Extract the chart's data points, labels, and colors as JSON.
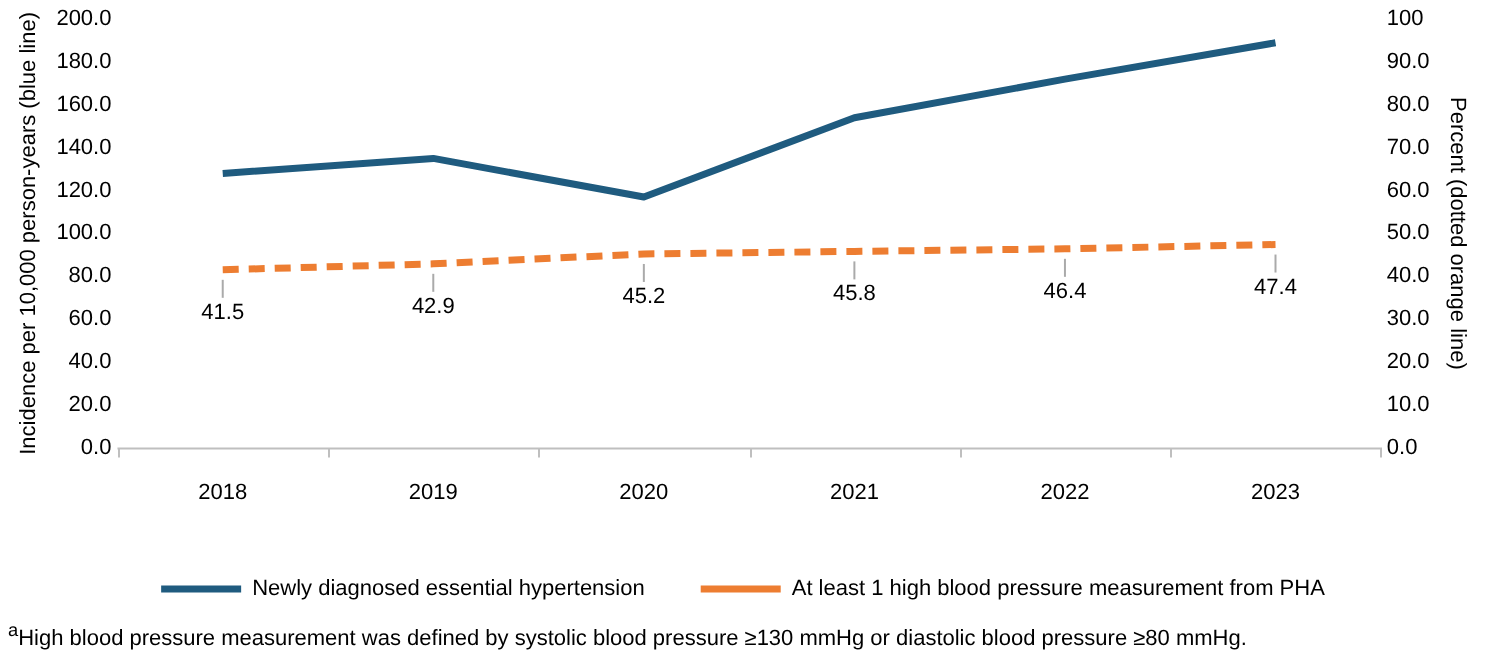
{
  "chart_data": {
    "type": "line",
    "categories": [
      "2018",
      "2019",
      "2020",
      "2021",
      "2022",
      "2023"
    ],
    "ylabel": "Incidence per 10,000 person-years (blue line)",
    "y2label": "Percent (dotted orange line)",
    "ylim": [
      0,
      200
    ],
    "yticks": [
      {
        "value": 0,
        "label": "0.0"
      },
      {
        "value": 20,
        "label": "20.0"
      },
      {
        "value": 40,
        "label": "40.0"
      },
      {
        "value": 60,
        "label": "60.0"
      },
      {
        "value": 80,
        "label": "80.0"
      },
      {
        "value": 100,
        "label": "100.0"
      },
      {
        "value": 120,
        "label": "120.0"
      },
      {
        "value": 140,
        "label": "140.0"
      },
      {
        "value": 160,
        "label": "160.0"
      },
      {
        "value": 180,
        "label": "180.0"
      },
      {
        "value": 200,
        "label": "200.0"
      }
    ],
    "y2lim": [
      0,
      100
    ],
    "y2ticks": [
      {
        "value": 0,
        "label": "0.0"
      },
      {
        "value": 10,
        "label": "10.0"
      },
      {
        "value": 20,
        "label": "20.0"
      },
      {
        "value": 30,
        "label": "30.0"
      },
      {
        "value": 40,
        "label": "40.0"
      },
      {
        "value": 50,
        "label": "50.0"
      },
      {
        "value": 60,
        "label": "60.0"
      },
      {
        "value": 70,
        "label": "70.0"
      },
      {
        "value": 80,
        "label": "80.0"
      },
      {
        "value": 90,
        "label": "90.0"
      },
      100
    ],
    "series": [
      {
        "name": "Newly diagnosed essential hypertension",
        "color": "#1f5b7f",
        "values": [
          128,
          135,
          117,
          154,
          172,
          189
        ],
        "line_style": "solid"
      },
      {
        "name": "At least 1 high blood pressure measurement from PHA",
        "color": "#ed7d31",
        "values": [
          41.5,
          42.9,
          45.2,
          45.8,
          46.4,
          47.4
        ],
        "axis": "y2",
        "line_style": "dashed",
        "value_labels": [
          "41.5",
          "42.9",
          "45.2",
          "45.8",
          "46.4",
          "47.4"
        ]
      }
    ],
    "grid": false,
    "legend": "bottom",
    "marker": "none",
    "annotations": [
      "$^{a}$High blood pressure measurement was defined by systolic blood pressure ≥130 mmHg or diastolic blood pressure ≥80 mmHg."
    ]
  }
}
